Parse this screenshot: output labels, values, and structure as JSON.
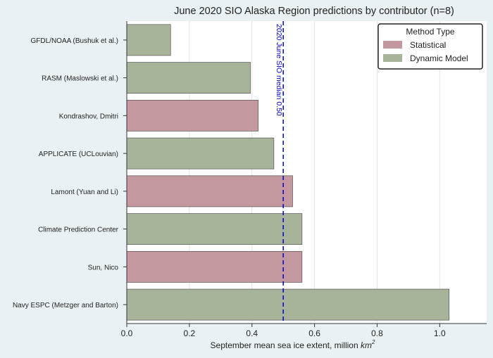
{
  "chart_data": {
    "type": "bar",
    "orientation": "horizontal",
    "title": "June 2020 SIO Alaska Region predictions by contributor (n=8)",
    "xlabel": "September mean sea ice extent, million",
    "xlabel_unit": "km",
    "xlabel_exp": "2",
    "xlim": [
      0,
      1.15
    ],
    "xticks": [
      0,
      0.2,
      0.4,
      0.6,
      0.8,
      1.0
    ],
    "xtick_labels": [
      "0.0",
      "0.2",
      "0.4",
      "0.6",
      "0.8",
      "1.0"
    ],
    "grid": true,
    "categories": [
      "GFDL/NOAA (Bushuk et al.)",
      "RASM (Maslowski et al.)",
      "Kondrashov, Dmitri",
      "APPLICATE (UCLouvian)",
      "Lamont (Yuan and Li)",
      "Climate Prediction Center",
      "Sun, Nico",
      "Navy ESPC (Metzger and Barton)"
    ],
    "values": [
      0.14,
      0.395,
      0.42,
      0.47,
      0.53,
      0.56,
      0.56,
      1.03
    ],
    "method": [
      "Dynamic Model",
      "Dynamic Model",
      "Statistical",
      "Dynamic Model",
      "Statistical",
      "Dynamic Model",
      "Statistical",
      "Dynamic Model"
    ],
    "median": {
      "value": 0.5,
      "label": "2020 June SIO median 0.50",
      "color": "#0000cc"
    },
    "legend": {
      "title": "Method Type",
      "position": "top-right",
      "entries": [
        {
          "name": "Statistical",
          "color": "#c4989f"
        },
        {
          "name": "Dynamic Model",
          "color": "#a8b49a"
        }
      ]
    },
    "colors": {
      "Statistical": "#c4989f",
      "Dynamic Model": "#a8b49a",
      "edge": "#555555",
      "plot_bg": "#ffffff",
      "outer_bg": "#eaf1f4"
    }
  }
}
